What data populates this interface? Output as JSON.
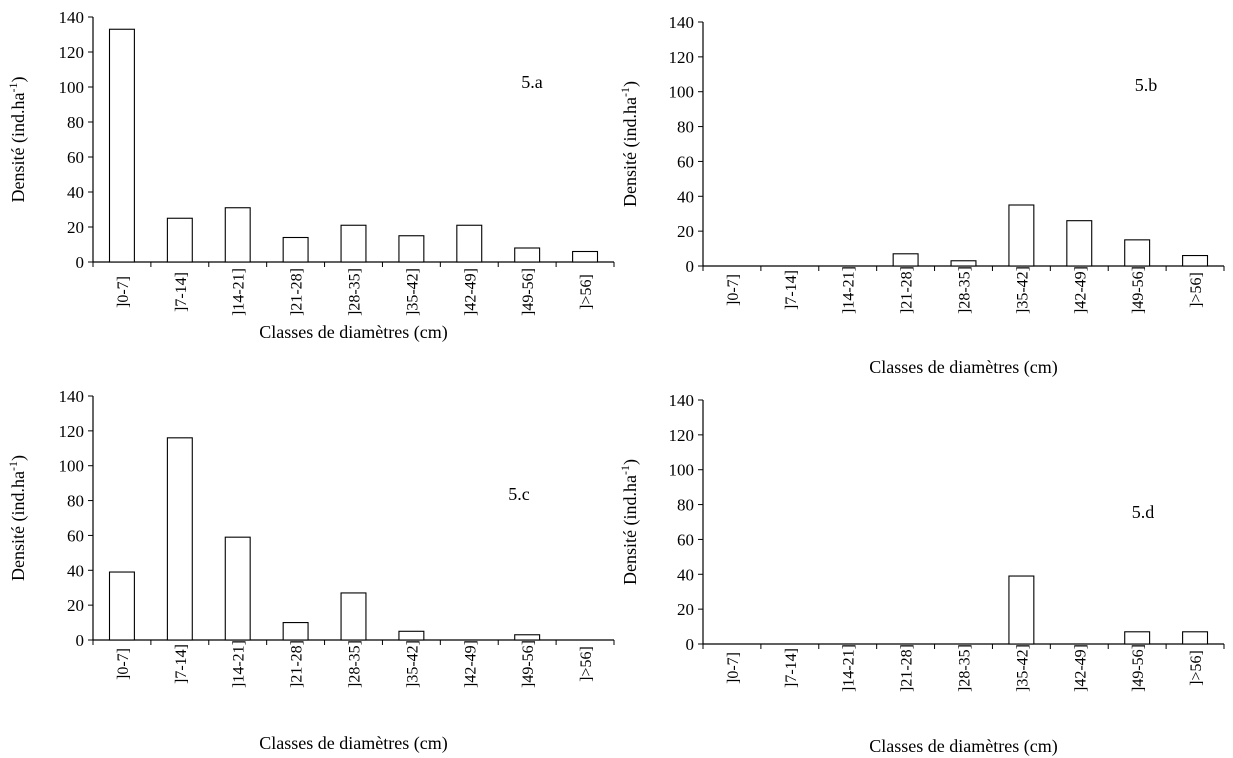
{
  "chart_data": [
    {
      "type": "bar",
      "panel_label": "5.a",
      "categories": [
        "]0-7]",
        "]7-14]",
        "]14-21]",
        "]21-28]",
        "]28-35]",
        "]35-42]",
        "]42-49]",
        "]49-56]",
        "]>56]"
      ],
      "values": [
        133,
        25,
        31,
        14,
        21,
        15,
        21,
        8,
        6
      ],
      "xlabel": "Classes de diamètres (cm)",
      "ylabel": "Densité (ind.ha",
      "ylabel_superscript": "-1",
      "ylabel_close": ")",
      "ylim": [
        0,
        140
      ],
      "yticks": [
        0,
        20,
        40,
        60,
        80,
        100,
        120,
        140
      ],
      "tick_labels_rotated": false,
      "grid": false,
      "bar_fill": "#ffffff",
      "bar_stroke": "#000000"
    },
    {
      "type": "bar",
      "panel_label": "5.b",
      "categories": [
        "]0-7]",
        "]7-14]",
        "]14-21]",
        "]21-28]",
        "]28-35]",
        "]35-42]",
        "]42-49]",
        "]49-56]",
        "]>56]"
      ],
      "values": [
        0,
        0,
        0,
        7,
        3,
        35,
        26,
        15,
        6
      ],
      "xlabel": "Classes de diamètres (cm)",
      "ylabel": "Densité (ind.ha",
      "ylabel_superscript": "-1",
      "ylabel_close": ")",
      "ylim": [
        0,
        140
      ],
      "yticks": [
        0,
        20,
        40,
        60,
        80,
        100,
        120,
        140
      ],
      "tick_labels_rotated": true,
      "grid": false,
      "bar_fill": "#ffffff",
      "bar_stroke": "#000000"
    },
    {
      "type": "bar",
      "panel_label": "5.c",
      "categories": [
        "]0-7]",
        "]7-14]",
        "]14-21]",
        "]21-28]",
        "]28-35]",
        "]35-42]",
        "]42-49]",
        "]49-56]",
        "]>56]"
      ],
      "values": [
        39,
        116,
        59,
        10,
        27,
        5,
        0,
        3,
        0
      ],
      "xlabel": "Classes de diamètres (cm)",
      "ylabel": "Densité (ind.ha",
      "ylabel_superscript": "-1",
      "ylabel_close": ")",
      "ylim": [
        0,
        140
      ],
      "yticks": [
        0,
        20,
        40,
        60,
        80,
        100,
        120,
        140
      ],
      "tick_labels_rotated": true,
      "grid": false,
      "bar_fill": "#ffffff",
      "bar_stroke": "#000000"
    },
    {
      "type": "bar",
      "panel_label": "5.d",
      "categories": [
        "]0-7]",
        "]7-14]",
        "]14-21]",
        "]21-28]",
        "]28-35]",
        "]35-42]",
        "]42-49]",
        "]49-56]",
        "]>56]"
      ],
      "values": [
        0,
        0,
        0,
        0,
        0,
        39,
        0,
        7,
        7
      ],
      "xlabel": "Classes de diamètres (cm)",
      "ylabel": "Densité (ind.ha",
      "ylabel_superscript": "-1",
      "ylabel_close": ")",
      "ylim": [
        0,
        140
      ],
      "yticks": [
        0,
        20,
        40,
        60,
        80,
        100,
        120,
        140
      ],
      "tick_labels_rotated": true,
      "grid": false,
      "bar_fill": "#ffffff",
      "bar_stroke": "#000000"
    }
  ]
}
